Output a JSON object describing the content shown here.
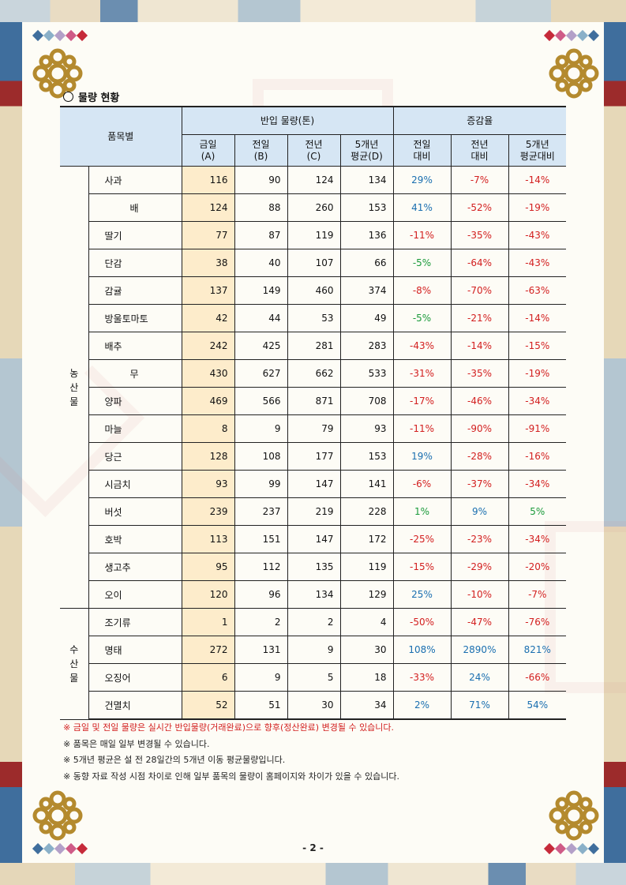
{
  "title": "물량 현황",
  "header": {
    "group": "품목별",
    "volume_group": "반입 물량(톤)",
    "change_group": "증감율",
    "cols": [
      {
        "l1": "금일",
        "l2": "(A)"
      },
      {
        "l1": "전일",
        "l2": "(B)"
      },
      {
        "l1": "전년",
        "l2": "(C)"
      },
      {
        "l1": "5개년",
        "l2": "평균(D)"
      },
      {
        "l1": "전일",
        "l2": "대비"
      },
      {
        "l1": "전년",
        "l2": "대비"
      },
      {
        "l1": "5개년",
        "l2": "평균대비"
      }
    ]
  },
  "categories": [
    {
      "name": "농산물",
      "rows": [
        {
          "item": "사과",
          "a": "116",
          "b": "90",
          "c": "124",
          "d": "134",
          "e": "29%",
          "f": "-7%",
          "g": "-14%",
          "align": "justify"
        },
        {
          "item": "배",
          "a": "124",
          "b": "88",
          "c": "260",
          "d": "153",
          "e": "41%",
          "f": "-52%",
          "g": "-19%",
          "align": "center"
        },
        {
          "item": "딸기",
          "a": "77",
          "b": "87",
          "c": "119",
          "d": "136",
          "e": "-11%",
          "f": "-35%",
          "g": "-43%",
          "align": "justify"
        },
        {
          "item": "단감",
          "a": "38",
          "b": "40",
          "c": "107",
          "d": "66",
          "e": "-5%",
          "f": "-64%",
          "g": "-43%",
          "align": "justify"
        },
        {
          "item": "감귤",
          "a": "137",
          "b": "149",
          "c": "460",
          "d": "374",
          "e": "-8%",
          "f": "-70%",
          "g": "-63%",
          "align": "justify"
        },
        {
          "item": "방울토마토",
          "a": "42",
          "b": "44",
          "c": "53",
          "d": "49",
          "e": "-5%",
          "f": "-21%",
          "g": "-14%",
          "align": "justify"
        },
        {
          "item": "배추",
          "a": "242",
          "b": "425",
          "c": "281",
          "d": "283",
          "e": "-43%",
          "f": "-14%",
          "g": "-15%",
          "align": "justify"
        },
        {
          "item": "무",
          "a": "430",
          "b": "627",
          "c": "662",
          "d": "533",
          "e": "-31%",
          "f": "-35%",
          "g": "-19%",
          "align": "center"
        },
        {
          "item": "양파",
          "a": "469",
          "b": "566",
          "c": "871",
          "d": "708",
          "e": "-17%",
          "f": "-46%",
          "g": "-34%",
          "align": "justify"
        },
        {
          "item": "마늘",
          "a": "8",
          "b": "9",
          "c": "79",
          "d": "93",
          "e": "-11%",
          "f": "-90%",
          "g": "-91%",
          "align": "justify"
        },
        {
          "item": "당근",
          "a": "128",
          "b": "108",
          "c": "177",
          "d": "153",
          "e": "19%",
          "f": "-28%",
          "g": "-16%",
          "align": "justify"
        },
        {
          "item": "시금치",
          "a": "93",
          "b": "99",
          "c": "147",
          "d": "141",
          "e": "-6%",
          "f": "-37%",
          "g": "-34%",
          "align": "justify"
        },
        {
          "item": "버섯",
          "a": "239",
          "b": "237",
          "c": "219",
          "d": "228",
          "e": "1%",
          "f": "9%",
          "g": "5%",
          "align": "justify"
        },
        {
          "item": "호박",
          "a": "113",
          "b": "151",
          "c": "147",
          "d": "172",
          "e": "-25%",
          "f": "-23%",
          "g": "-34%",
          "align": "justify"
        },
        {
          "item": "생고추",
          "a": "95",
          "b": "112",
          "c": "135",
          "d": "119",
          "e": "-15%",
          "f": "-29%",
          "g": "-20%",
          "align": "justify"
        },
        {
          "item": "오이",
          "a": "120",
          "b": "96",
          "c": "134",
          "d": "129",
          "e": "25%",
          "f": "-10%",
          "g": "-7%",
          "align": "justify"
        }
      ]
    },
    {
      "name": "수산물",
      "rows": [
        {
          "item": "조기류",
          "a": "1",
          "b": "2",
          "c": "2",
          "d": "4",
          "e": "-50%",
          "f": "-47%",
          "g": "-76%",
          "align": "justify"
        },
        {
          "item": "명태",
          "a": "272",
          "b": "131",
          "c": "9",
          "d": "30",
          "e": "108%",
          "f": "2890%",
          "g": "821%",
          "align": "justify"
        },
        {
          "item": "오징어",
          "a": "6",
          "b": "9",
          "c": "5",
          "d": "18",
          "e": "-33%",
          "f": "24%",
          "g": "-66%",
          "align": "justify"
        },
        {
          "item": "건멸치",
          "a": "52",
          "b": "51",
          "c": "30",
          "d": "34",
          "e": "2%",
          "f": "71%",
          "g": "54%",
          "align": "justify"
        }
      ]
    }
  ],
  "colors": {
    "positive": "#1a6fb0",
    "negative": "#d32020",
    "green": "#1a9a3a"
  },
  "green_cells": [
    "단감.e",
    "방울토마토.e",
    "버섯.e",
    "버섯.g"
  ],
  "notes": [
    {
      "text": "※ 금일 및 전일 물량은 실시간 반입물량(거래완료)으로 향후(정산완료) 변경될 수 있습니다.",
      "red": true
    },
    {
      "text": "※ 품목은 매일 일부 변경될 수 있습니다.",
      "red": false
    },
    {
      "text": "※ 5개년 평균은 설 전 28일간의 5개년 이동 평균물량입니다.",
      "red": false
    },
    {
      "text": "※ 동향 자료 작성 시점 차이로 인해 일부 품목의 물량이 홈페이지와 차이가 있을 수 있습니다.",
      "red": false
    }
  ],
  "page_number": "- 2 -"
}
